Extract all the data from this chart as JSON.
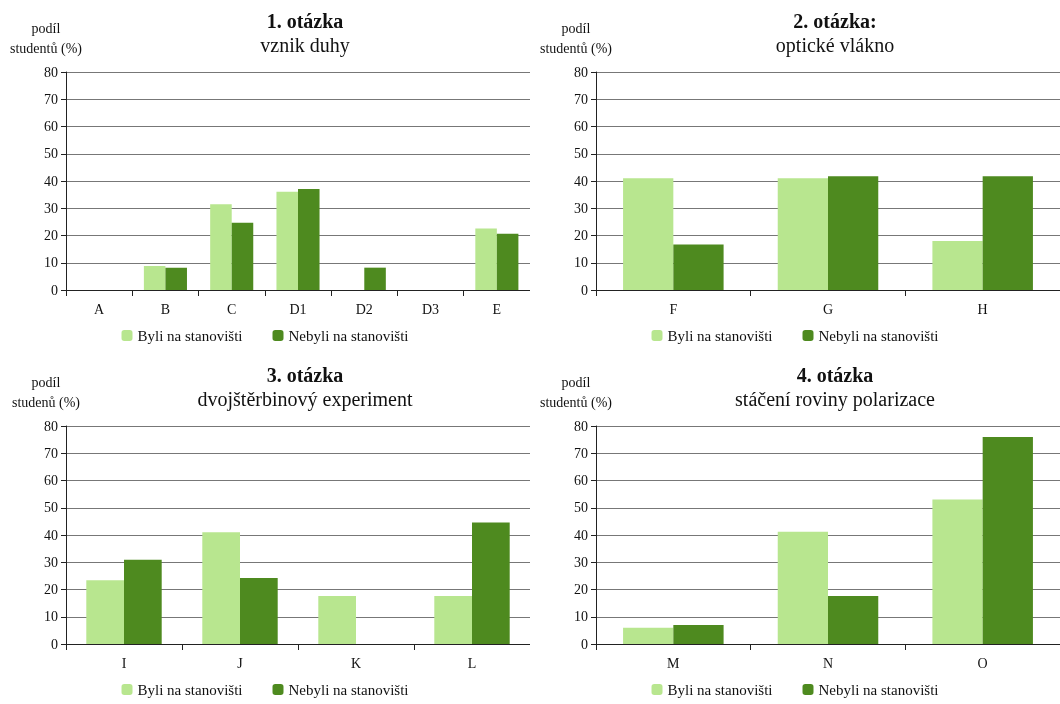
{
  "chart_data": [
    {
      "type": "bar",
      "title": "1. otázka",
      "subtitle": "vznik duhy",
      "ylabel": "podíl\nstudentů (%)",
      "categories": [
        "A",
        "B",
        "C",
        "D1",
        "D2",
        "D3",
        "E"
      ],
      "series": [
        {
          "name": "Byli na stanovišti",
          "color": "#b8e68f",
          "values": [
            0,
            8.8,
            31.5,
            36.1,
            0,
            0,
            22.6
          ]
        },
        {
          "name": "Nebyli na stanovišti",
          "color": "#4e8a1f",
          "values": [
            0,
            8.2,
            24.7,
            37.1,
            8.2,
            0,
            20.6
          ]
        }
      ],
      "ylim": [
        0,
        80
      ],
      "yticks": [
        0,
        10,
        20,
        30,
        40,
        50,
        60,
        70,
        80
      ],
      "grid": "y",
      "legend": "bottom"
    },
    {
      "type": "bar",
      "title": "2. otázka:",
      "subtitle": "optické vlákno",
      "ylabel": "podíl\nstudentů (%)",
      "categories": [
        "F",
        "G",
        "H"
      ],
      "series": [
        {
          "name": "Byli na stanovišti",
          "color": "#b8e68f",
          "values": [
            41,
            41,
            18
          ]
        },
        {
          "name": "Nebyli na stanovišti",
          "color": "#4e8a1f",
          "values": [
            16.7,
            41.7,
            41.7
          ]
        }
      ],
      "ylim": [
        0,
        80
      ],
      "yticks": [
        0,
        10,
        20,
        30,
        40,
        50,
        60,
        70,
        80
      ],
      "grid": "y",
      "legend": "bottom"
    },
    {
      "type": "bar",
      "title": "3. otázka",
      "subtitle": "dvojštěrbinový experiment",
      "ylabel": "podíl\nstudenů (%)",
      "categories": [
        "I",
        "J",
        "K",
        "L"
      ],
      "series": [
        {
          "name": "Byli na stanovišti",
          "color": "#b8e68f",
          "values": [
            23.4,
            41,
            17.6,
            17.6
          ]
        },
        {
          "name": "Nebyli na stanovišti",
          "color": "#4e8a1f",
          "values": [
            30.9,
            24.2,
            0,
            44.6
          ]
        }
      ],
      "ylim": [
        0,
        80
      ],
      "yticks": [
        0,
        10,
        20,
        30,
        40,
        50,
        60,
        70,
        80
      ],
      "grid": "y",
      "legend": "bottom"
    },
    {
      "type": "bar",
      "title": "4. otázka",
      "subtitle": "stáčení roviny polarizace",
      "ylabel": "podíl\nstudentů (%)",
      "categories": [
        "M",
        "N",
        "O"
      ],
      "series": [
        {
          "name": "Byli na stanovišti",
          "color": "#b8e68f",
          "values": [
            6,
            41.2,
            53
          ]
        },
        {
          "name": "Nebyli na stanovišti",
          "color": "#4e8a1f",
          "values": [
            7,
            17.6,
            76
          ]
        }
      ],
      "ylim": [
        0,
        80
      ],
      "yticks": [
        0,
        10,
        20,
        30,
        40,
        50,
        60,
        70,
        80
      ],
      "grid": "y",
      "legend": "bottom"
    }
  ]
}
